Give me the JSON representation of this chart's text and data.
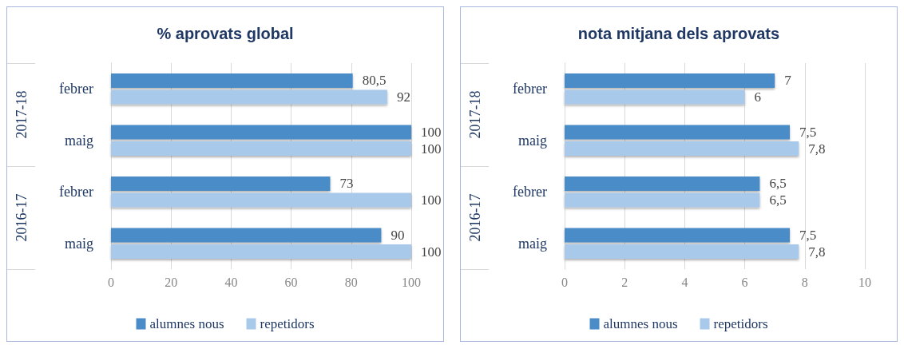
{
  "chart_data": [
    {
      "type": "bar",
      "title": "% aprovats global",
      "orientation": "horizontal",
      "categories": [
        "febrer",
        "maig",
        "febrer",
        "maig"
      ],
      "annotations": [
        "2017-18",
        "2016-17"
      ],
      "series": [
        {
          "name": "alumnes nous",
          "color": "#4a8cc8",
          "values": [
            80.5,
            100,
            73,
            90
          ],
          "value_labels": [
            "80,5",
            "100",
            "73",
            "90"
          ]
        },
        {
          "name": "repetidors",
          "color": "#a9c9eb",
          "values": [
            92,
            100,
            100,
            100
          ],
          "value_labels": [
            "92",
            "100",
            "100",
            "100"
          ]
        }
      ],
      "xlim": [
        0,
        100
      ],
      "xticks": [
        0,
        20,
        40,
        60,
        80,
        100
      ],
      "grid": "x",
      "legend": "bottom"
    },
    {
      "type": "bar",
      "title": "nota mitjana dels aprovats",
      "orientation": "horizontal",
      "categories": [
        "febrer",
        "maig",
        "febrer",
        "maig"
      ],
      "annotations": [
        "2017-18",
        "2016-17"
      ],
      "series": [
        {
          "name": "alumnes nous",
          "color": "#4a8cc8",
          "values": [
            7,
            7.5,
            6.5,
            7.5
          ],
          "value_labels": [
            "7",
            "7,5",
            "6,5",
            "7,5"
          ]
        },
        {
          "name": "repetidors",
          "color": "#a9c9eb",
          "values": [
            6,
            7.8,
            6.5,
            7.8
          ],
          "value_labels": [
            "6",
            "7,8",
            "6,5",
            "7,8"
          ]
        }
      ],
      "xlim": [
        0,
        10
      ],
      "xticks": [
        0,
        2,
        4,
        6,
        8,
        10
      ],
      "grid": "x",
      "legend": "bottom"
    }
  ]
}
